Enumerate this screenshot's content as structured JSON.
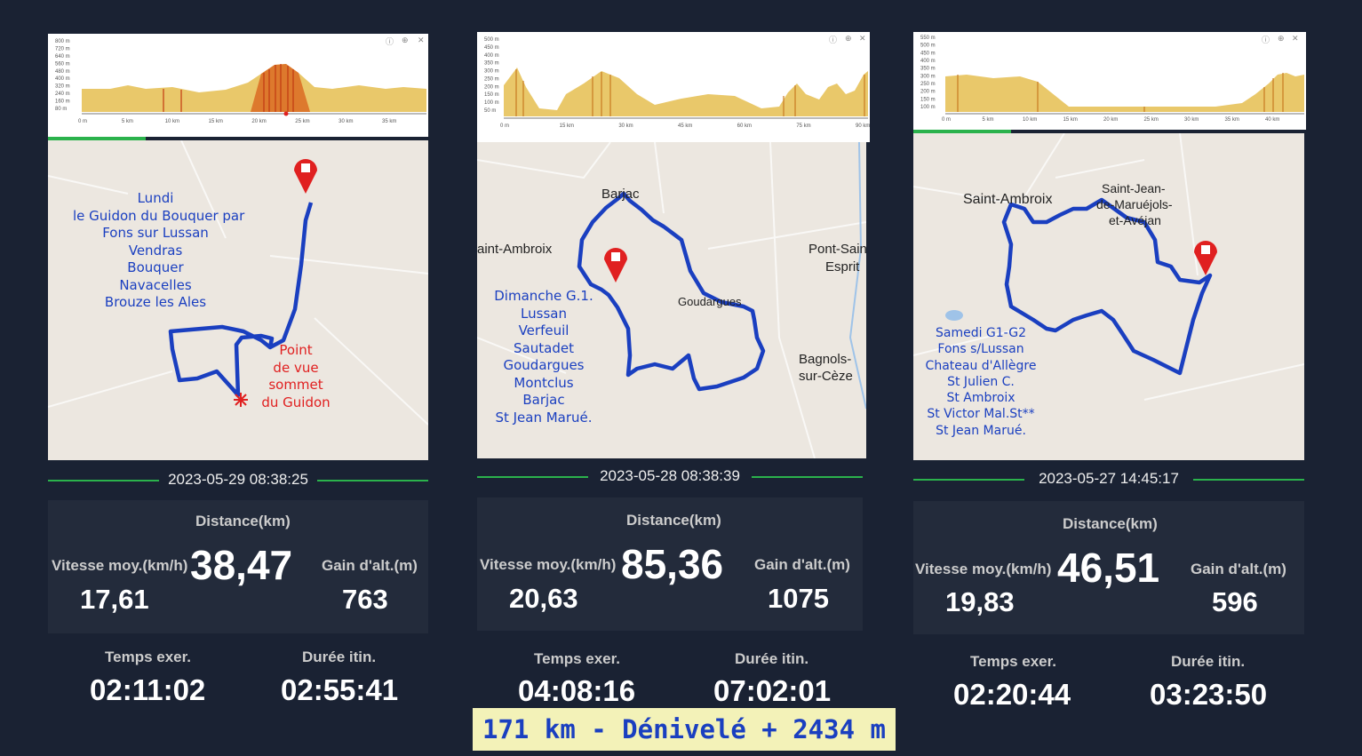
{
  "colors": {
    "route": "#1a3fc0",
    "accent": "#2bb24c",
    "marker": "#e02020",
    "summary_bg": "#f3f2b8"
  },
  "icons": [
    "map-pin-icon",
    "star-burst-icon",
    "info-icon",
    "close-icon"
  ],
  "summary": "171 km - Dénivelé + 2434 m",
  "rides": [
    {
      "elevation": {
        "y_ticks": [
          "800 m",
          "720 m",
          "640 m",
          "560 m",
          "480 m",
          "400 m",
          "320 m",
          "240 m",
          "160 m",
          "80 m"
        ],
        "x_ticks": [
          "0 m",
          "5 km",
          "10 km",
          "15 km",
          "20 km",
          "25 km",
          "30 km",
          "35 km"
        ]
      },
      "map_labels": [],
      "note": "Lundi\nle Guidon du Bouquer par\nFons sur Lussan\nVendras\nBouquer\nNavacelles\nBrouze les Ales",
      "note2": "Point\nde vue\nsommet\ndu Guidon",
      "date": "2023-05-29 08:38:25",
      "distance_label": "Distance(km)",
      "distance": "38,47",
      "speed_label": "Vitesse moy.(km/h)",
      "speed": "17,61",
      "gain_label": "Gain d'alt.(m)",
      "gain": "763",
      "time_label": "Temps exer.",
      "time": "02:11:02",
      "duration_label": "Durée itin.",
      "duration": "02:55:41"
    },
    {
      "elevation": {
        "y_ticks": [
          "500 m",
          "450 m",
          "400 m",
          "350 m",
          "300 m",
          "250 m",
          "200 m",
          "150 m",
          "100 m",
          "50 m"
        ],
        "x_ticks": [
          "0 m",
          "15 km",
          "30 km",
          "45 km",
          "60 km",
          "75 km",
          "90 km"
        ]
      },
      "map_labels": [
        "Barjac",
        "aint-Ambroix",
        "Goudargues",
        "Pont-Sain",
        "Esprit",
        "Bagnols-",
        "sur-Cèze"
      ],
      "note": "Dimanche G.1.\nLussan\nVerfeuil\nSautadet\nGoudargues\nMontclus\nBarjac\nSt Jean Marué.",
      "note2": "",
      "date": "2023-05-28 08:38:39",
      "distance_label": "Distance(km)",
      "distance": "85,36",
      "speed_label": "Vitesse moy.(km/h)",
      "speed": "20,63",
      "gain_label": "Gain d'alt.(m)",
      "gain": "1075",
      "time_label": "Temps exer.",
      "time": "04:08:16",
      "duration_label": "Durée itin.",
      "duration": "07:02:01"
    },
    {
      "elevation": {
        "y_ticks": [
          "550 m",
          "500 m",
          "450 m",
          "400 m",
          "350 m",
          "300 m",
          "250 m",
          "200 m",
          "150 m",
          "100 m"
        ],
        "x_ticks": [
          "0 m",
          "5 km",
          "10 km",
          "15 km",
          "20 km",
          "25 km",
          "30 km",
          "35 km",
          "40 km"
        ]
      },
      "map_labels": [
        "Saint-Ambroix",
        "Saint-Jean-",
        "de-Maruéjols-",
        "et-Avéjan"
      ],
      "note": "Samedi G1-G2\nFons s/Lussan\nChateau d'Allègre\nSt Julien C.\nSt Ambroix\nSt Victor Mal.St**\nSt Jean Marué.",
      "note2": "",
      "date": "2023-05-27 14:45:17",
      "distance_label": "Distance(km)",
      "distance": "46,51",
      "speed_label": "Vitesse moy.(km/h)",
      "speed": "19,83",
      "gain_label": "Gain d'alt.(m)",
      "gain": "596",
      "time_label": "Temps exer.",
      "time": "02:20:44",
      "duration_label": "Durée itin.",
      "duration": "03:23:50"
    }
  ]
}
